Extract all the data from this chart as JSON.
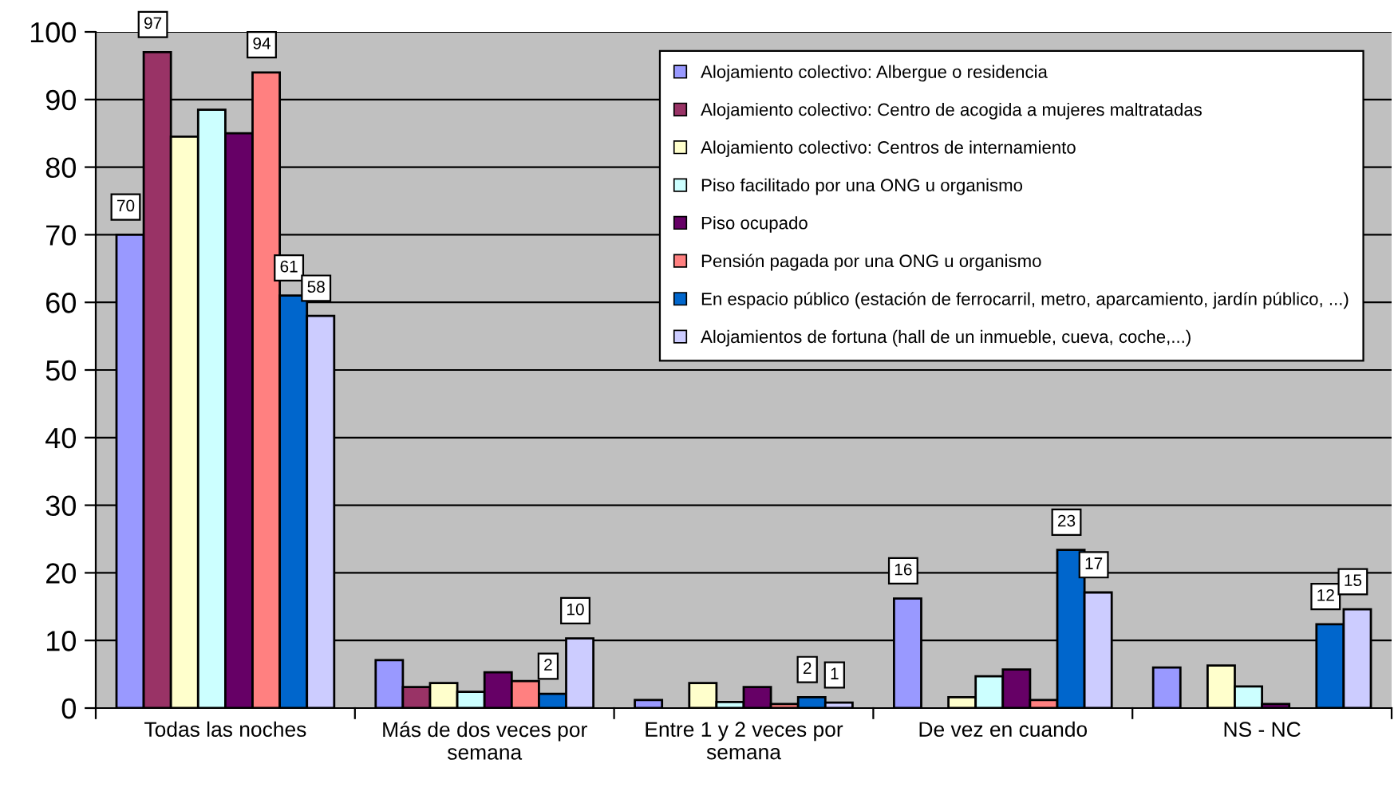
{
  "chart_data": {
    "type": "bar",
    "categories": [
      "Todas las noches",
      "Más de dos veces por semana",
      "Entre 1 y 2 veces por semana",
      "De vez en cuando",
      "NS - NC"
    ],
    "series": [
      {
        "name": "Alojamiento colectivo: Albergue o residencia",
        "color": "#9999ff",
        "values": [
          70,
          7.1,
          1.2,
          16.2,
          6.0
        ],
        "value_labels": [
          "70",
          null,
          null,
          "16",
          null
        ]
      },
      {
        "name": "Alojamiento colectivo: Centro de acogida a mujeres maltratadas",
        "color": "#993366",
        "values": [
          97,
          3.1,
          null,
          null,
          null
        ],
        "value_labels": [
          "97",
          null,
          null,
          null,
          null
        ]
      },
      {
        "name": "Alojamiento colectivo: Centros de internamiento",
        "color": "#ffffcc",
        "values": [
          84.5,
          3.7,
          3.7,
          1.6,
          6.3
        ]
      },
      {
        "name": "Piso facilitado por una ONG u organismo",
        "color": "#ccffff",
        "values": [
          88.5,
          2.4,
          0.9,
          4.7,
          3.2
        ]
      },
      {
        "name": "Piso ocupado",
        "color": "#660066",
        "values": [
          85,
          5.3,
          3.1,
          5.7,
          0.6
        ]
      },
      {
        "name": "Pensión pagada por una ONG u organismo",
        "color": "#ff8080",
        "values": [
          94,
          4.0,
          0.6,
          1.2,
          null
        ],
        "value_labels": [
          "94",
          null,
          null,
          null,
          null
        ]
      },
      {
        "name": "En espacio público (estación de ferrocarril, metro, aparcamiento, jardín público, ...)",
        "color": "#0066cc",
        "values": [
          61,
          2.1,
          1.6,
          23.4,
          12.4
        ],
        "value_labels": [
          "61",
          "2",
          "2",
          "23",
          "12"
        ]
      },
      {
        "name": "Alojamientos de fortuna (hall de un inmueble, cueva, coche,...)",
        "color": "#ccccff",
        "values": [
          58,
          10.3,
          0.8,
          17.1,
          14.6
        ],
        "value_labels": [
          "58",
          "10",
          "1",
          "17",
          "15"
        ]
      }
    ],
    "ylim": [
      0,
      100
    ],
    "yticks": [
      0,
      10,
      20,
      30,
      40,
      50,
      60,
      70,
      80,
      90,
      100
    ],
    "grid": "y",
    "legend": "top right"
  }
}
